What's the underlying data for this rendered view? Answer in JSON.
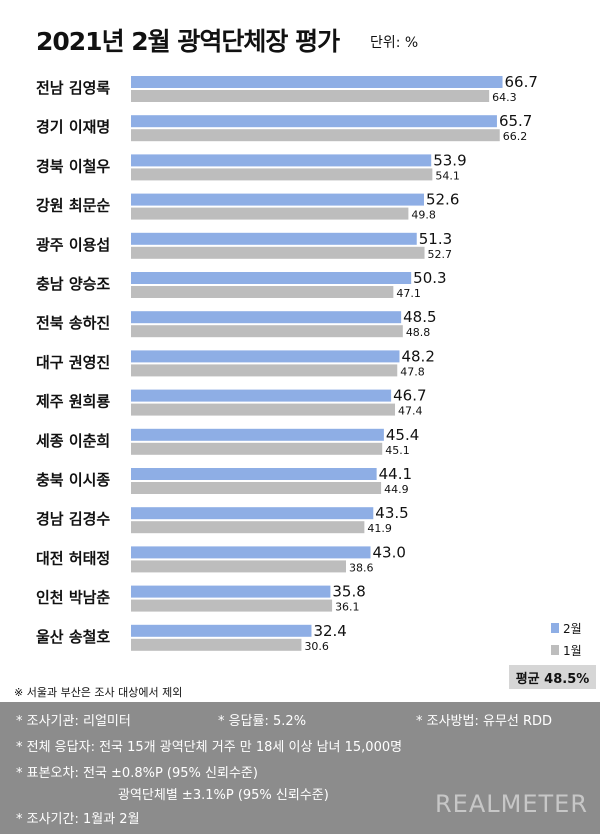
{
  "title": "2021년 2월 광역단체장 평가",
  "unit": "단위: %",
  "chart_data": {
    "type": "bar",
    "orientation": "horizontal",
    "categories": [
      "전남 김영록",
      "경기 이재명",
      "경북 이철우",
      "강원 최문순",
      "광주 이용섭",
      "충남 양승조",
      "전북 송하진",
      "대구 권영진",
      "제주 원희룡",
      "세종 이춘희",
      "충북 이시종",
      "경남 김경수",
      "대전 허태정",
      "인천 박남춘",
      "울산 송철호"
    ],
    "series": [
      {
        "name": "2월",
        "color": "#8eaee5",
        "values": [
          66.7,
          65.7,
          53.9,
          52.6,
          51.3,
          50.3,
          48.5,
          48.2,
          46.7,
          45.4,
          44.1,
          43.5,
          43.0,
          35.8,
          32.4
        ]
      },
      {
        "name": "1월",
        "color": "#bdbdbd",
        "values": [
          64.3,
          66.2,
          54.1,
          49.8,
          52.7,
          47.1,
          48.8,
          47.8,
          47.4,
          45.1,
          44.9,
          41.9,
          38.6,
          36.1,
          30.6
        ]
      }
    ],
    "value_labels": {
      "2월": [
        "66.7",
        "65.7",
        "53.9",
        "52.6",
        "51.3",
        "50.3",
        "48.5",
        "48.2",
        "46.7",
        "45.4",
        "44.1",
        "43.5",
        "43.0",
        "35.8",
        "32.4"
      ],
      "1월": [
        "64.3",
        "66.2",
        "54.1",
        "49.8",
        "52.7",
        "47.1",
        "48.8",
        "47.8",
        "47.4",
        "45.1",
        "44.9",
        "41.9",
        "38.6",
        "36.1",
        "30.6"
      ]
    },
    "xlim": [
      0,
      100
    ],
    "grid": false,
    "legend_position": "bottom-right"
  },
  "average": "평균 48.5%",
  "note": "※ 서울과 부산은 조사 대상에서 제외",
  "footer": {
    "agency": "* 조사기관: 리얼미터",
    "response_rate": "* 응답률: 5.2%",
    "method": "* 조사방법: 유무선 RDD",
    "respondents": "* 전체 응답자: 전국 15개 광역단체 거주 만 18세 이상 남녀 15,000명",
    "margin_national": "* 표본오차: 전국 ±0.8%P (95% 신뢰수준)",
    "margin_regional": "광역단체별 ±3.1%P (95% 신뢰수준)",
    "period": "* 조사기간: 1월과 2월"
  },
  "brand": "REALMETER"
}
